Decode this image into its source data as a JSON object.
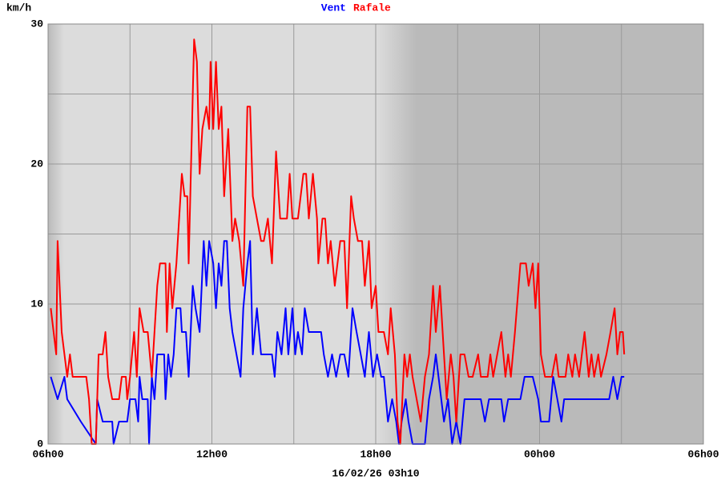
{
  "chart_data": {
    "type": "line",
    "y_label": "km/h",
    "x_label": "16/02/26 03h10",
    "xlim": [
      6,
      30
    ],
    "ylim": [
      0,
      30
    ],
    "xticks": [
      {
        "value": 6,
        "label": "06h00"
      },
      {
        "value": 9,
        "label": null
      },
      {
        "value": 12,
        "label": "12h00"
      },
      {
        "value": 15,
        "label": null
      },
      {
        "value": 18,
        "label": "18h00"
      },
      {
        "value": 21,
        "label": null
      },
      {
        "value": 24,
        "label": "00h00"
      },
      {
        "value": 27,
        "label": null
      },
      {
        "value": 30,
        "label": "06h00"
      }
    ],
    "yticks": [
      0,
      {
        "value": 5,
        "label": null
      },
      10,
      {
        "value": 15,
        "label": null
      },
      20,
      {
        "value": 25,
        "label": null
      },
      30
    ],
    "grid": true,
    "series": [
      {
        "name": "Vent",
        "color": "#0000ff",
        "x": [
          6.1,
          6.35,
          6.6,
          6.7,
          7.2,
          7.75,
          7.8,
          8.0,
          8.35,
          8.4,
          8.6,
          8.9,
          9.0,
          9.2,
          9.3,
          9.35,
          9.45,
          9.65,
          9.7,
          9.8,
          9.9,
          10.0,
          10.25,
          10.3,
          10.4,
          10.5,
          10.6,
          10.7,
          10.85,
          10.9,
          11.05,
          11.15,
          11.3,
          11.4,
          11.55,
          11.7,
          11.8,
          11.9,
          12.05,
          12.15,
          12.25,
          12.35,
          12.45,
          12.55,
          12.65,
          12.75,
          12.9,
          13.05,
          13.15,
          13.3,
          13.4,
          13.5,
          13.65,
          13.8,
          14.2,
          14.3,
          14.4,
          14.55,
          14.7,
          14.8,
          14.95,
          15.05,
          15.15,
          15.3,
          15.4,
          15.55,
          16.0,
          16.1,
          16.25,
          16.4,
          16.55,
          16.7,
          16.85,
          17.0,
          17.15,
          17.3,
          17.45,
          17.6,
          17.75,
          17.9,
          18.05,
          18.2,
          18.3,
          18.45,
          18.6,
          18.75,
          18.85,
          18.95,
          19.1,
          19.2,
          19.35,
          19.8,
          19.95,
          20.1,
          20.2,
          20.4,
          20.5,
          20.65,
          20.8,
          20.95,
          21.1,
          21.25,
          21.85,
          22.0,
          22.15,
          22.6,
          22.7,
          22.85,
          23.3,
          23.45,
          23.75,
          23.95,
          24.05,
          24.35,
          24.5,
          24.65,
          24.8,
          24.9,
          26.55,
          26.7,
          26.85,
          27.0,
          27.1
        ],
        "values": [
          4.8,
          3.2,
          4.8,
          3.2,
          1.6,
          0,
          3.2,
          1.6,
          1.6,
          0,
          1.6,
          1.6,
          3.2,
          3.2,
          1.6,
          4.8,
          3.2,
          3.2,
          0,
          4.8,
          3.2,
          6.4,
          6.4,
          3.2,
          6.4,
          4.8,
          6.4,
          9.7,
          9.7,
          8.0,
          8.0,
          4.8,
          11.3,
          9.7,
          8.0,
          14.5,
          11.3,
          14.5,
          12.9,
          9.7,
          12.9,
          11.3,
          14.5,
          14.5,
          9.7,
          8.0,
          6.4,
          4.8,
          9.7,
          12.9,
          14.5,
          6.4,
          9.7,
          6.4,
          6.4,
          4.8,
          8.0,
          6.4,
          9.7,
          6.4,
          9.7,
          6.4,
          8.0,
          6.4,
          9.7,
          8.0,
          8.0,
          6.4,
          4.8,
          6.4,
          4.8,
          6.4,
          6.4,
          4.8,
          9.7,
          8.0,
          6.4,
          4.8,
          8.0,
          4.8,
          6.4,
          4.8,
          4.8,
          1.6,
          3.2,
          1.6,
          0,
          1.6,
          3.2,
          1.6,
          0,
          0,
          3.2,
          4.8,
          6.4,
          3.2,
          1.6,
          3.2,
          0,
          1.6,
          0,
          3.2,
          3.2,
          1.6,
          3.2,
          3.2,
          1.6,
          3.2,
          3.2,
          4.8,
          4.8,
          3.2,
          1.6,
          1.6,
          4.8,
          3.2,
          1.6,
          3.2,
          3.2,
          4.8,
          3.2,
          4.8,
          4.8
        ]
      },
      {
        "name": "Rafale",
        "color": "#ff0000",
        "x": [
          6.1,
          6.3,
          6.35,
          6.5,
          6.7,
          6.8,
          6.9,
          7.4,
          7.5,
          7.6,
          7.75,
          7.85,
          8.0,
          8.1,
          8.2,
          8.35,
          8.6,
          8.7,
          8.85,
          8.9,
          9.0,
          9.15,
          9.25,
          9.35,
          9.5,
          9.65,
          9.8,
          10.0,
          10.1,
          10.3,
          10.35,
          10.45,
          10.55,
          10.7,
          10.9,
          11.0,
          11.1,
          11.15,
          11.35,
          11.45,
          11.55,
          11.65,
          11.8,
          11.9,
          11.95,
          12.05,
          12.15,
          12.25,
          12.35,
          12.45,
          12.6,
          12.75,
          12.85,
          13.0,
          13.15,
          13.3,
          13.4,
          13.5,
          13.65,
          13.8,
          13.9,
          14.05,
          14.2,
          14.35,
          14.5,
          14.75,
          14.85,
          14.95,
          15.15,
          15.35,
          15.45,
          15.55,
          15.7,
          15.85,
          15.9,
          16.05,
          16.15,
          16.25,
          16.35,
          16.5,
          16.6,
          16.7,
          16.85,
          16.95,
          17.1,
          17.2,
          17.35,
          17.5,
          17.6,
          17.75,
          17.85,
          18.0,
          18.1,
          18.3,
          18.45,
          18.55,
          18.7,
          18.8,
          18.9,
          19.05,
          19.15,
          19.25,
          19.35,
          19.5,
          19.65,
          19.8,
          19.95,
          20.1,
          20.2,
          20.35,
          20.5,
          20.6,
          20.75,
          20.85,
          20.95,
          21.1,
          21.25,
          21.4,
          21.55,
          21.75,
          21.85,
          22.1,
          22.2,
          22.3,
          22.45,
          22.6,
          22.75,
          22.85,
          22.95,
          23.1,
          23.3,
          23.5,
          23.6,
          23.75,
          23.85,
          23.95,
          24.05,
          24.2,
          24.45,
          24.6,
          24.7,
          24.95,
          25.05,
          25.2,
          25.3,
          25.45,
          25.55,
          25.65,
          25.8,
          25.9,
          26.0,
          26.15,
          26.25,
          26.45,
          26.6,
          26.75,
          26.85,
          26.95,
          27.05,
          27.1
        ],
        "values": [
          9.7,
          6.4,
          14.5,
          8.0,
          4.8,
          6.4,
          4.8,
          4.8,
          3.2,
          0,
          0,
          6.4,
          6.4,
          8.0,
          4.8,
          3.2,
          3.2,
          4.8,
          4.8,
          3.2,
          4.8,
          8.0,
          4.8,
          9.7,
          8.0,
          8.0,
          4.8,
          11.3,
          12.9,
          12.9,
          8.0,
          12.9,
          9.7,
          12.9,
          19.3,
          17.7,
          17.7,
          12.9,
          28.9,
          27.3,
          19.3,
          22.5,
          24.1,
          22.5,
          27.3,
          22.5,
          27.3,
          22.5,
          24.1,
          17.7,
          22.5,
          14.5,
          16.1,
          14.5,
          11.3,
          24.1,
          24.1,
          17.7,
          16.1,
          14.5,
          14.5,
          16.1,
          12.9,
          20.9,
          16.1,
          16.1,
          19.3,
          16.1,
          16.1,
          19.3,
          19.3,
          16.1,
          19.3,
          16.1,
          12.9,
          16.1,
          16.1,
          12.9,
          14.5,
          11.3,
          12.9,
          14.5,
          14.5,
          9.7,
          17.7,
          16.1,
          14.5,
          14.5,
          11.3,
          14.5,
          9.7,
          11.3,
          8.0,
          8.0,
          6.4,
          9.7,
          6.4,
          1.6,
          0,
          6.4,
          4.8,
          6.4,
          4.8,
          3.2,
          1.6,
          4.8,
          6.4,
          11.3,
          8.0,
          11.3,
          6.4,
          3.2,
          6.4,
          4.8,
          1.6,
          6.4,
          6.4,
          4.8,
          4.8,
          6.4,
          4.8,
          4.8,
          6.4,
          4.8,
          6.4,
          8.0,
          4.8,
          6.4,
          4.8,
          8.0,
          12.9,
          12.9,
          11.3,
          12.9,
          9.7,
          12.9,
          6.4,
          4.8,
          4.8,
          6.4,
          4.8,
          4.8,
          6.4,
          4.8,
          6.4,
          4.8,
          6.4,
          8.0,
          4.8,
          6.4,
          4.8,
          6.4,
          4.8,
          6.4,
          8.0,
          9.7,
          6.4,
          8.0,
          8.0,
          6.4
        ]
      }
    ]
  }
}
